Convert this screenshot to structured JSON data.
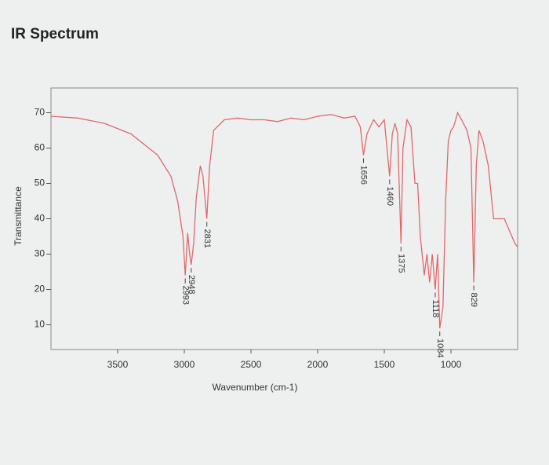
{
  "chart_data": {
    "type": "line",
    "title": "IR Spectrum",
    "x_label": "Wavenumber (cm-1)",
    "y_label": "Transmittance",
    "x_reversed": true,
    "xlim": [
      4000,
      500
    ],
    "ylim": [
      3,
      77
    ],
    "xticks": [
      3500,
      3000,
      2500,
      2000,
      1500,
      1000
    ],
    "yticks": [
      10,
      20,
      30,
      40,
      50,
      60,
      70
    ],
    "series": [
      {
        "color": "#e0686b",
        "x": [
          4000,
          3800,
          3600,
          3400,
          3200,
          3100,
          3050,
          3010,
          2993,
          2975,
          2960,
          2948,
          2930,
          2910,
          2880,
          2860,
          2831,
          2810,
          2780,
          2700,
          2600,
          2500,
          2400,
          2300,
          2200,
          2100,
          2000,
          1900,
          1800,
          1720,
          1680,
          1656,
          1630,
          1580,
          1540,
          1500,
          1480,
          1460,
          1440,
          1420,
          1400,
          1375,
          1360,
          1330,
          1300,
          1270,
          1250,
          1230,
          1200,
          1180,
          1160,
          1140,
          1118,
          1100,
          1084,
          1060,
          1040,
          1020,
          1000,
          980,
          950,
          920,
          880,
          850,
          829,
          810,
          790,
          760,
          720,
          680,
          600,
          520,
          500
        ],
        "values": [
          69,
          68.5,
          67,
          64,
          58,
          52,
          45,
          35,
          24,
          36,
          30,
          27,
          33,
          46,
          55,
          52,
          40,
          55,
          65,
          68,
          68.5,
          68,
          68,
          67.5,
          68.5,
          68,
          69,
          69.5,
          68.5,
          69,
          66,
          58,
          64,
          68,
          66,
          68,
          60,
          52,
          64,
          67,
          64,
          33,
          60,
          68,
          66,
          50,
          50,
          35,
          24,
          30,
          22,
          30,
          20,
          30,
          9,
          15,
          45,
          62,
          65,
          66,
          70,
          68,
          65,
          60,
          22,
          55,
          65,
          62,
          55,
          40,
          40,
          33,
          32
        ]
      }
    ],
    "peak_labels": [
      2993,
      2948,
      2831,
      1656,
      1460,
      1375,
      1118,
      1084,
      829
    ]
  }
}
